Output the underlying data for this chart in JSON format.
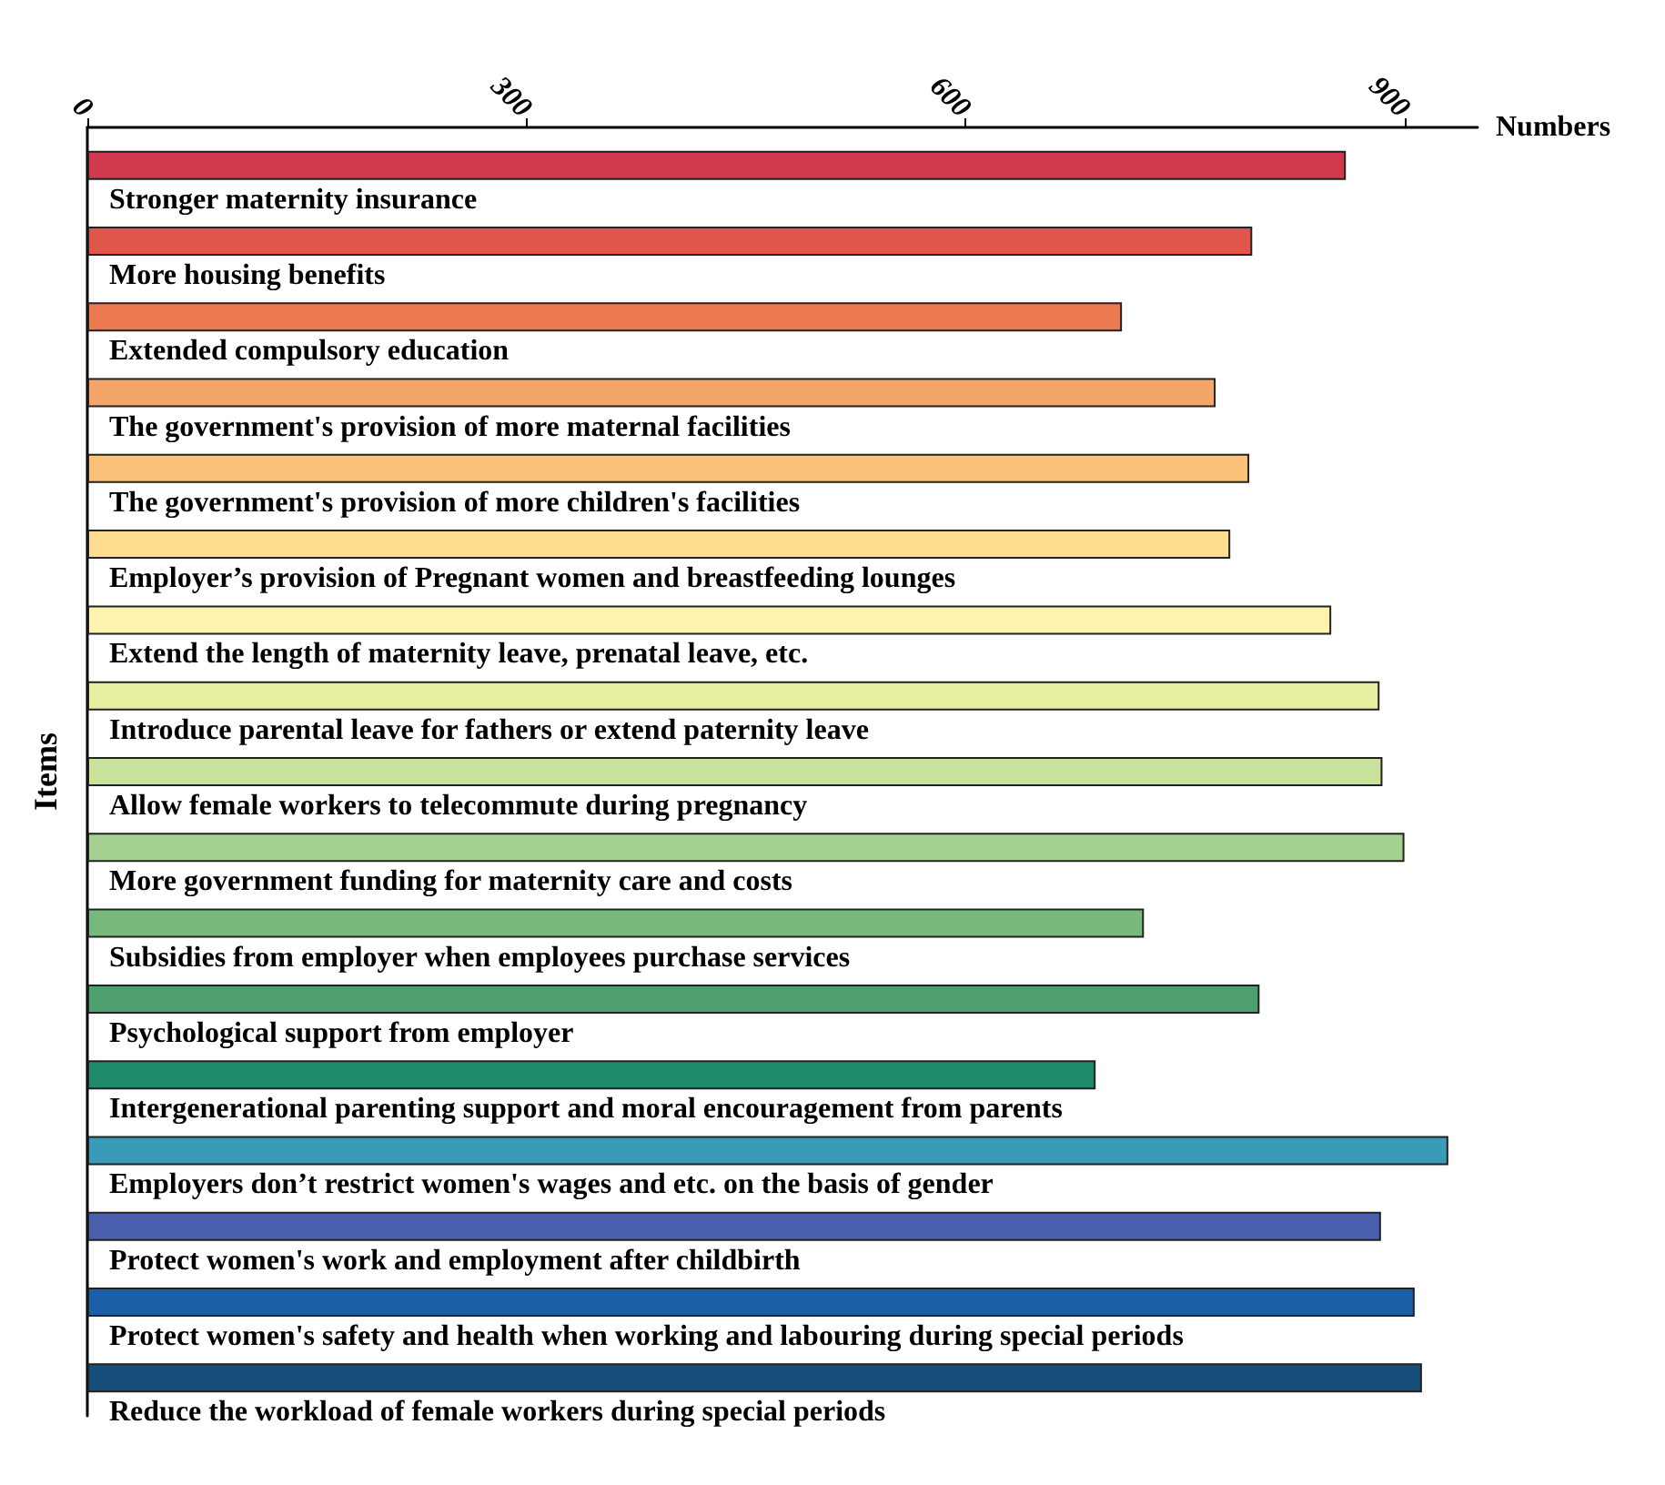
{
  "chart_data": {
    "type": "bar",
    "orientation": "horizontal",
    "xlabel": "Numbers",
    "ylabel": "Items",
    "categories": [
      "Stronger maternity insurance",
      "More housing benefits",
      "Extended compulsory education",
      "The government's provision of more maternal facilities",
      "The government's provision of more children's facilities",
      "Employer’s provision of Pregnant women and breastfeeding lounges",
      "Extend the length of maternity leave, prenatal leave, etc.",
      "Introduce parental leave for fathers or extend paternity leave",
      "Allow female workers to telecommute during pregnancy",
      "More government funding for maternity care and costs",
      "Subsidies from employer when employees purchase services",
      "Psychological support from employer",
      "Intergenerational parenting support and moral encouragement from parents",
      "Employers don’t restrict women's wages and etc. on the basis of gender",
      "Protect women's work and employment after childbirth",
      "Protect women's safety and health when working and labouring during special periods",
      "Reduce the workload of female workers during special periods"
    ],
    "values": [
      860,
      796,
      707,
      771,
      794,
      781,
      850,
      883,
      885,
      900,
      722,
      801,
      689,
      930,
      884,
      907,
      912
    ],
    "colors": [
      "#d2384e",
      "#e0564a",
      "#ec7a50",
      "#f5a46a",
      "#fbc37a",
      "#fddc8f",
      "#fef3ae",
      "#e6efa0",
      "#c9e29c",
      "#a5d190",
      "#76b97a",
      "#4ea06e",
      "#1e8a6a",
      "#3a9bb8",
      "#4a5fae",
      "#1a5fa8",
      "#164e7a"
    ],
    "xlim": [
      0,
      950
    ],
    "xticks": [
      0,
      300,
      600,
      900
    ],
    "grid": false
  }
}
